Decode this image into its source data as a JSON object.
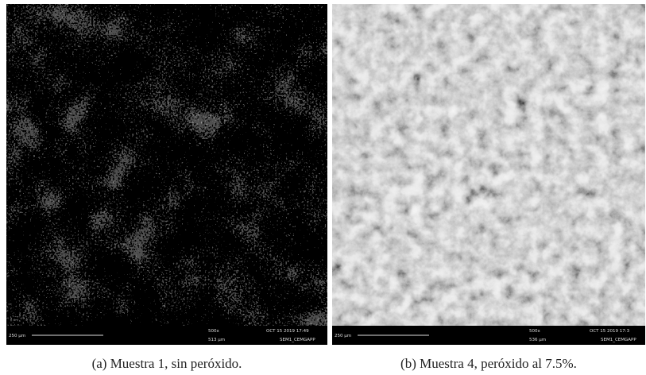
{
  "panels": [
    {
      "caption": "(a) Muestra 1, sin peróxido.",
      "scale_bar": "250 μm",
      "magnification": "500x",
      "field_width": "513 μm",
      "timestamp": "OCT 15 2019 17:49",
      "instrument": "SEM1_CEMGAPP"
    },
    {
      "caption": "(b) Muestra 4, peróxido al 7.5%.",
      "scale_bar": "250 μm",
      "magnification": "500x",
      "field_width": "536 μm",
      "timestamp": "OCT 15 2019 17:3",
      "instrument": "SEM1_CEMGAPP"
    }
  ]
}
